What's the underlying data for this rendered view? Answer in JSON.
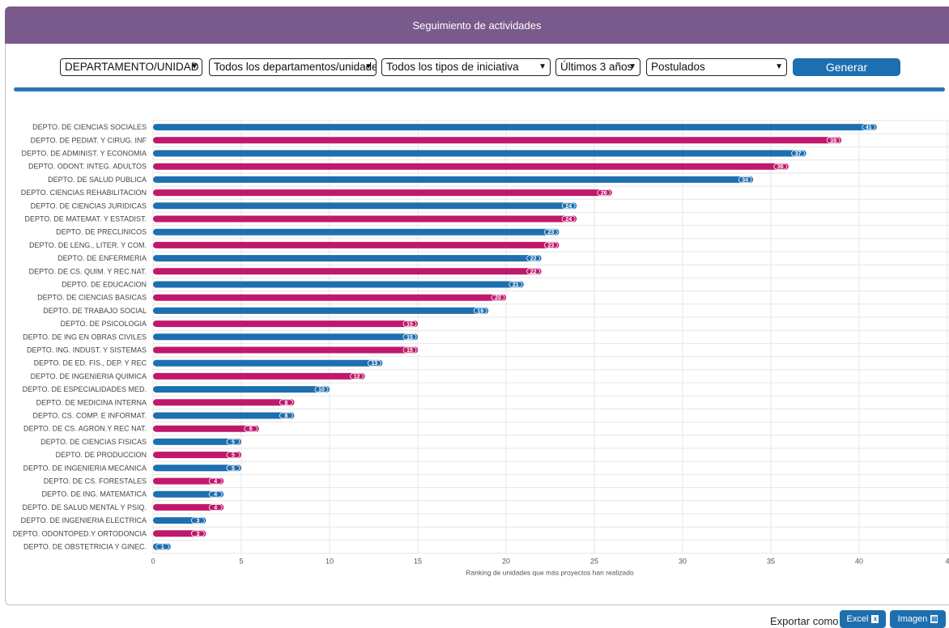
{
  "header": {
    "title": "Seguimiento de actividades"
  },
  "filters": {
    "grouping": "DEPARTAMENTO/UNIDAD",
    "department": "Todos los departamentos/unidades",
    "initiative_type": "Todos los tipos de iniciativa",
    "period": "Últimos 3 años",
    "status": "Postulados",
    "generate_label": "Generar"
  },
  "export": {
    "label": "Exportar como",
    "excel_label": "Excel",
    "image_label": "Imagen"
  },
  "colors": {
    "blue": "#1d6fb0",
    "magenta": "#c0186b",
    "header": "#7a5a8c"
  },
  "chart_data": {
    "type": "bar",
    "orientation": "horizontal",
    "xlabel": "Ranking de unidades que más proyectos han realizado",
    "xlim": [
      0,
      45
    ],
    "xticks": [
      "0",
      "5",
      "10",
      "15",
      "20",
      "25",
      "30",
      "35",
      "40",
      "4"
    ],
    "grid": true,
    "categories": [
      "DEPTO. DE CIENCIAS SOCIALES",
      "DEPTO. DE PEDIAT. Y CIRUG. INF",
      "DEPTO. DE ADMINIST. Y ECONOMIA",
      "DEPTO. ODONT. INTEG. ADULTOS",
      "DEPTO. DE SALUD PUBLICA",
      "DEPTO. CIENCIAS REHABILITACION",
      "DEPTO. DE CIENCIAS JURIDICAS",
      "DEPTO. DE MATEMAT. Y ESTADIST.",
      "DEPTO. DE PRECLINICOS",
      "DEPTO. DE LENG., LITER. Y COM.",
      "DEPTO. DE ENFERMERIA",
      "DEPTO. DE CS. QUIM. Y REC.NAT.",
      "DEPTO. DE EDUCACION",
      "DEPTO. DE CIENCIAS BASICAS",
      "DEPTO. DE TRABAJO SOCIAL",
      "DEPTO. DE PSICOLOGIA",
      "DEPTO. DE ING EN OBRAS CIVILES",
      "DEPTO. ING. INDUST. Y SISTEMAS",
      "DEPTO. DE ED. FIS., DEP. Y REC",
      "DEPTO. DE INGENIERIA QUIMICA",
      "DEPTO. DE ESPECIALIDADES MED.",
      "DEPTO. DE MEDICINA INTERNA",
      "DEPTO. CS. COMP. E INFORMAT.",
      "DEPTO. DE CS. AGRON.Y REC NAT.",
      "DEPTO. DE CIENCIAS FISICAS",
      "DEPTO. DE PRODUCCION",
      "DEPTO. DE INGENIERIA MECANICA",
      "DEPTO. DE CS. FORESTALES",
      "DEPTO. DE ING. MATEMATICA",
      "DEPTO. DE SALUD MENTAL Y PSIQ.",
      "DEPTO. DE INGENIERIA ELECTRICA",
      "DEPTO. ODONTOPED.Y ORTODONCIA",
      "DEPTO. DE OBSTETRICIA Y GINEC."
    ],
    "values": [
      41,
      39,
      37,
      36,
      34,
      26,
      24,
      24,
      23,
      23,
      22,
      22,
      21,
      20,
      19,
      15,
      15,
      15,
      13,
      12,
      10,
      8,
      8,
      6,
      5,
      5,
      5,
      4,
      4,
      4,
      3,
      3,
      1
    ],
    "bar_colors": [
      "blue",
      "magenta",
      "blue",
      "magenta",
      "blue",
      "magenta",
      "blue",
      "magenta",
      "blue",
      "magenta",
      "blue",
      "magenta",
      "blue",
      "magenta",
      "blue",
      "magenta",
      "blue",
      "magenta",
      "blue",
      "magenta",
      "blue",
      "magenta",
      "blue",
      "magenta",
      "blue",
      "magenta",
      "blue",
      "magenta",
      "blue",
      "magenta",
      "blue",
      "magenta",
      "blue"
    ]
  }
}
